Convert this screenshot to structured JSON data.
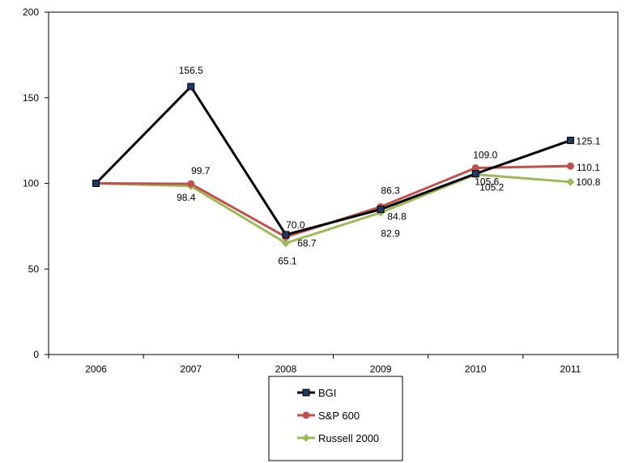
{
  "chart_data": {
    "type": "line",
    "title": "",
    "xlabel": "",
    "ylabel": "",
    "categories": [
      "2006",
      "2007",
      "2008",
      "2009",
      "2010",
      "2011"
    ],
    "ylim": [
      0,
      200
    ],
    "yticks": [
      0,
      50,
      100,
      150,
      200
    ],
    "grid": false,
    "legend_placement": "bottom-center",
    "series": [
      {
        "name": "BGI",
        "color": "#000000",
        "marker": "square",
        "marker_color": "#1f3864",
        "values": [
          100,
          156.5,
          70.0,
          84.8,
          105.6,
          125.1
        ],
        "labels": [
          "",
          "156.5",
          "70.0",
          "84.8",
          "105.6",
          "125.1"
        ]
      },
      {
        "name": "S&P 600",
        "color": "#c0504d",
        "marker": "circle",
        "marker_color": "#c0504d",
        "values": [
          100,
          99.7,
          68.7,
          86.3,
          109.0,
          110.1
        ],
        "labels": [
          "",
          "99.7",
          "68.7",
          "86.3",
          "109.0",
          "110.1"
        ]
      },
      {
        "name": "Russell 2000",
        "color": "#9bbb59",
        "marker": "diamond",
        "marker_color": "#9bbb59",
        "values": [
          100,
          98.4,
          65.1,
          82.9,
          105.2,
          100.8
        ],
        "labels": [
          "",
          "98.4",
          "65.1",
          "82.9",
          "105.2",
          "100.8"
        ]
      }
    ]
  }
}
